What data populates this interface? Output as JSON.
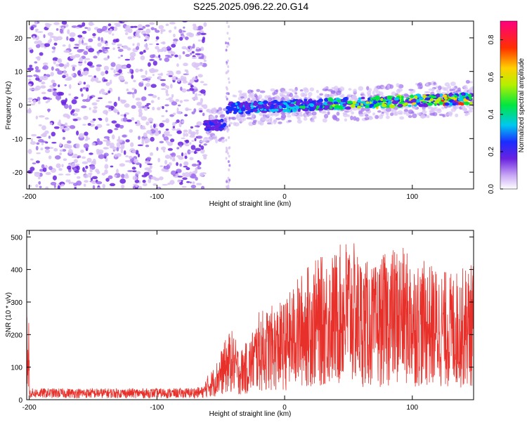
{
  "title": "S225.2025.096.22.20.G14",
  "colors": {
    "snr_line": "#e8302a",
    "spec_faint": "#d9c4f5",
    "spec_mid": "#a070ee",
    "spec_strong": "#6a22e0",
    "axis": "#000000"
  },
  "chart_data": [
    {
      "type": "heatmap",
      "title": "S225.2025.096.22.20.G14",
      "xlabel": "Height of straight line (km)",
      "ylabel": "Frequency (Hz)",
      "xlim": [
        -202,
        148
      ],
      "ylim": [
        -25,
        25
      ],
      "xticks": [
        -200,
        -100,
        0,
        100
      ],
      "yticks": [
        -20,
        -10,
        0,
        10,
        20
      ],
      "colorbar": {
        "label": "Normalized spectral amplitude",
        "range": [
          0.0,
          0.9
        ],
        "ticks": [
          0.0,
          0.2,
          0.4,
          0.6,
          0.8
        ],
        "colormap": "rainbow (violet to red)"
      },
      "regions": [
        {
          "x_range": [
            -200,
            -62
          ],
          "description_value": "broadband noise",
          "freq_range": [
            -25,
            25
          ],
          "amplitude": [
            0.0,
            0.2
          ]
        },
        {
          "x_range": [
            -62,
            -45
          ],
          "freq_center": -6,
          "amplitude": [
            0.3,
            0.5
          ]
        },
        {
          "x_range": [
            -45,
            148
          ],
          "freq_center_start": -1,
          "freq_center_end": 2,
          "amplitude": [
            0.3,
            0.9
          ]
        }
      ]
    },
    {
      "type": "line",
      "xlabel": "Height of straight line (km)",
      "ylabel": "SNR (10 * v/v)",
      "xlim": [
        -202,
        148
      ],
      "ylim": [
        0,
        520
      ],
      "xticks": [
        -200,
        -100,
        0,
        100
      ],
      "yticks": [
        0,
        100,
        200,
        300,
        400,
        500
      ],
      "series": [
        {
          "color": "#e8302a",
          "x": [
            -200,
            -180,
            -160,
            -140,
            -120,
            -100,
            -80,
            -65,
            -55,
            -48,
            -42,
            -35,
            -28,
            -20,
            -10,
            0,
            10,
            20,
            30,
            40,
            50,
            60,
            70,
            80,
            90,
            100,
            110,
            120,
            130,
            140,
            148
          ],
          "y": [
            25,
            25,
            25,
            25,
            25,
            25,
            25,
            30,
            60,
            100,
            130,
            90,
            110,
            160,
            170,
            180,
            220,
            250,
            260,
            270,
            300,
            260,
            240,
            270,
            280,
            260,
            250,
            240,
            230,
            240,
            250
          ]
        }
      ]
    }
  ]
}
